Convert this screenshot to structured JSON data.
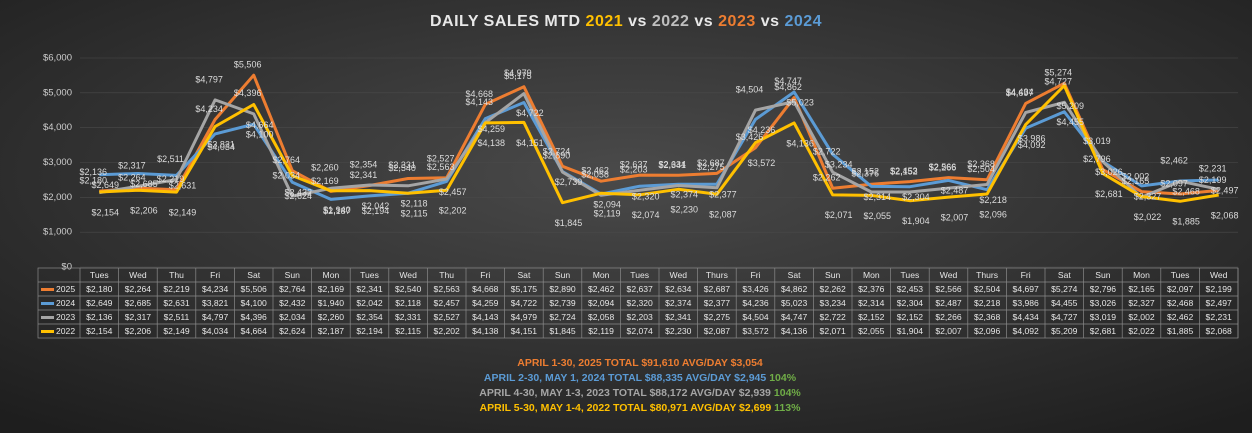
{
  "chart_data": {
    "type": "line",
    "title_parts": [
      "DAILY SALES MTD",
      "2021",
      "vs",
      "2022",
      "vs",
      "2023",
      "vs",
      "2024"
    ],
    "categories": [
      "Tues",
      "Wed",
      "Thu",
      "Fri",
      "Sat",
      "Sun",
      "Mon",
      "Tues",
      "Wed",
      "Thu",
      "Fri",
      "Sat",
      "Sun",
      "Mon",
      "Tues",
      "Wed",
      "Thurs",
      "Fri",
      "Sat",
      "Sun",
      "Mon",
      "Tues",
      "Wed",
      "Thurs",
      "Fri",
      "Sat",
      "Sun",
      "Mon",
      "Tues",
      "Wed"
    ],
    "series": [
      {
        "name": "2025",
        "color": "#ed7d31",
        "values": [
          2180,
          2264,
          2219,
          4234,
          5506,
          2764,
          2169,
          2341,
          2540,
          2563,
          4668,
          5175,
          2890,
          2462,
          2637,
          2634,
          2687,
          3426,
          4862,
          2262,
          2376,
          2453,
          2566,
          2504,
          4697,
          5274,
          2796,
          2165,
          2097,
          2199
        ],
        "value_labels": [
          "$2,180",
          "$2,264",
          "$2,219",
          "$4,234",
          "$5,506",
          "$2,764",
          "$2,169",
          "$2,341",
          "$2,540",
          "$2,563",
          "$4,668",
          "$5,175",
          "$2,890",
          "$2,462",
          "$2,637",
          "$2,634",
          "$2,687",
          "$3,426",
          "$4,862",
          "$2,262",
          "$2,376",
          "$2,453",
          "$2,566",
          "$2,504",
          "$4,697",
          "$5,274",
          "$2,796",
          "$2,165",
          "$2,097",
          "$2,199"
        ]
      },
      {
        "name": "2024",
        "color": "#5b9bd5",
        "values": [
          2649,
          2685,
          2631,
          3821,
          4100,
          2432,
          1940,
          2042,
          2118,
          2457,
          4259,
          4722,
          2739,
          2094,
          2320,
          2374,
          2377,
          4236,
          5023,
          3234,
          2314,
          2304,
          2487,
          2218,
          3986,
          4455,
          3026,
          2327,
          2468,
          2497
        ],
        "value_labels": [
          "$2,649",
          "$2,685",
          "$2,631",
          "$3,821",
          "$4,100",
          "$2,432",
          "$1,940",
          "$2,042",
          "$2,118",
          "$2,457",
          "$4,259",
          "$4,722",
          "$2,739",
          "$2,094",
          "$2,320",
          "$2,374",
          "$2,377",
          "$4,236",
          "$5,023",
          "$3,234",
          "$2,314",
          "$2,304",
          "$2,487",
          "$2,218",
          "$3,986",
          "$4,455",
          "$3,026",
          "$2,327",
          "$2,468",
          "$2,497"
        ]
      },
      {
        "name": "2023",
        "color": "#a5a5a5",
        "values": [
          2136,
          2317,
          2511,
          4797,
          4396,
          2034,
          2260,
          2354,
          2331,
          2527,
          4143,
          4979,
          2724,
          2058,
          2203,
          2341,
          2275,
          4504,
          4747,
          2722,
          2152,
          2152,
          2266,
          2368,
          4434,
          4727,
          3019,
          2002,
          2462,
          2231
        ],
        "value_labels": [
          "$2,136",
          "$2,317",
          "$2,511",
          "$4,797",
          "$4,396",
          "$2,034",
          "$2,260",
          "$2,354",
          "$2,331",
          "$2,527",
          "$4,143",
          "$4,979",
          "$2,724",
          "$2,058",
          "$2,203",
          "$2,341",
          "$2,275",
          "$4,504",
          "$4,747",
          "$2,722",
          "$2,152",
          "$2,152",
          "$2,266",
          "$2,368",
          "$4,434",
          "$4,727",
          "$3,019",
          "$2,002",
          "$2,462",
          "$2,231"
        ]
      },
      {
        "name": "2022",
        "color": "#ffc000",
        "values": [
          2154,
          2206,
          2149,
          4034,
          4664,
          2624,
          2187,
          2194,
          2115,
          2202,
          4138,
          4151,
          1845,
          2119,
          2074,
          2230,
          2087,
          3572,
          4136,
          2071,
          2055,
          1904,
          2007,
          2096,
          4092,
          5209,
          2681,
          2022,
          1885,
          2068
        ],
        "value_labels": [
          "$2,154",
          "$2,206",
          "$2,149",
          "$4,034",
          "$4,664",
          "$2,624",
          "$2,187",
          "$2,194",
          "$2,115",
          "$2,202",
          "$4,138",
          "$4,151",
          "$1,845",
          "$2,119",
          "$2,074",
          "$2,230",
          "$2,087",
          "$3,572",
          "$4,136",
          "$2,071",
          "$2,055",
          "$1,904",
          "$2,007",
          "$2,096",
          "$4,092",
          "$5,209",
          "$2,681",
          "$2,022",
          "$1,885",
          "$2,068"
        ]
      }
    ],
    "ylim": [
      0,
      6000
    ],
    "yticks": [
      {
        "value": 0,
        "label": "$0"
      },
      {
        "value": 1000,
        "label": "$1,000"
      },
      {
        "value": 2000,
        "label": "$2,000"
      },
      {
        "value": 3000,
        "label": "$3,000"
      },
      {
        "value": 4000,
        "label": "$4,000"
      },
      {
        "value": 5000,
        "label": "$5,000"
      },
      {
        "value": 6000,
        "label": "$6,000"
      }
    ],
    "grid": true,
    "annotations": [
      {
        "text": "APRIL 1-30, 2025 TOTAL $91,610 AVG/DAY $3,054",
        "color": "#ed7d31"
      },
      {
        "text": "APRIL 2-30, MAY 1, 2024 TOTAL $88,335 AVG/DAY $2,945",
        "color": "#5b9bd5",
        "pct": "104%"
      },
      {
        "text": "APRIL 4-30, MAY 1-3, 2023 TOTAL $88,172 AVG/DAY $2,939",
        "color": "#a5a5a5",
        "pct": "104%"
      },
      {
        "text": "APRIL 5-30, MAY 1-4, 2022 TOTAL $80,971 AVG/DAY $2,699",
        "color": "#ffc000",
        "pct": "113%"
      }
    ],
    "pct_color": "#70ad47"
  }
}
